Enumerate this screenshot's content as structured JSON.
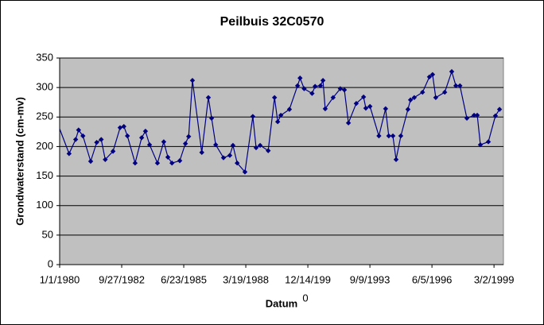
{
  "chart_data": {
    "type": "line",
    "title": "Peilbuis 32C0570",
    "x_label": "Datum",
    "x_label_note": "0",
    "y_label": "Grondwaterstand (cm-mv)",
    "color": "#000080",
    "plot_background": "#c0c0c0",
    "grid": true,
    "markers": true,
    "x": [
      "1980-01-01",
      "1980-06-01",
      "1980-09-15",
      "1980-11-01",
      "1981-01-10",
      "1981-05-15",
      "1981-08-20",
      "1981-11-01",
      "1982-01-05",
      "1982-05-10",
      "1982-09-01",
      "1982-11-01",
      "1982-12-28",
      "1983-05-01",
      "1983-08-15",
      "1983-10-15",
      "1983-12-20",
      "1984-04-25",
      "1984-08-05",
      "1984-10-10",
      "1984-12-15",
      "1985-04-20",
      "1985-07-20",
      "1985-09-10",
      "1985-11-10",
      "1986-04-10",
      "1986-07-25",
      "1986-09-15",
      "1986-11-20",
      "1987-03-25",
      "1987-07-05",
      "1987-08-25",
      "1987-11-01",
      "1988-03-05",
      "1988-07-10",
      "1988-09-01",
      "1988-11-05",
      "1989-03-15",
      "1989-06-25",
      "1989-08-15",
      "1989-10-05",
      "1990-02-20",
      "1990-07-01",
      "1990-08-10",
      "1990-10-15",
      "1991-02-20",
      "1991-04-10",
      "1991-07-05",
      "1991-08-15",
      "1991-09-20",
      "1992-01-25",
      "1992-05-20",
      "1992-07-25",
      "1992-09-28",
      "1993-02-01",
      "1993-05-30",
      "1993-07-05",
      "1993-09-10",
      "1994-02-01",
      "1994-05-20",
      "1994-07-10",
      "1994-09-15",
      "1994-11-05",
      "1995-01-20",
      "1995-05-15",
      "1995-06-25",
      "1995-08-25",
      "1996-01-05",
      "1996-04-25",
      "1996-06-15",
      "1996-08-05",
      "1996-12-28",
      "1997-04-20",
      "1997-06-25",
      "1997-08-30",
      "1997-12-20",
      "1998-04-15",
      "1998-06-05",
      "1998-07-25",
      "1998-12-01",
      "1999-03-25",
      "1999-05-30"
    ],
    "values": [
      230,
      188,
      212,
      228,
      218,
      175,
      207,
      212,
      178,
      192,
      232,
      234,
      218,
      172,
      215,
      226,
      203,
      172,
      208,
      182,
      172,
      176,
      205,
      217,
      312,
      190,
      283,
      248,
      203,
      181,
      185,
      202,
      172,
      157,
      251,
      198,
      202,
      193,
      283,
      242,
      253,
      263,
      303,
      316,
      298,
      290,
      302,
      303,
      312,
      264,
      283,
      298,
      296,
      240,
      273,
      284,
      265,
      268,
      218,
      264,
      218,
      218,
      178,
      218,
      263,
      279,
      283,
      292,
      318,
      322,
      283,
      292,
      327,
      303,
      303,
      248,
      253,
      253,
      203,
      208,
      252,
      263
    ],
    "xlim": [
      "1980-01-01",
      "1999-08-01"
    ],
    "xticks": [
      {
        "value": "1980-01-01",
        "label": "1/1/1980"
      },
      {
        "value": "1982-09-27",
        "label": "9/27/1982"
      },
      {
        "value": "1985-06-23",
        "label": "6/23/1985"
      },
      {
        "value": "1988-03-19",
        "label": "3/19/1988"
      },
      {
        "value": "1990-12-14",
        "label": "12/14/199"
      },
      {
        "value": "1993-09-09",
        "label": "9/9/1993"
      },
      {
        "value": "1996-06-05",
        "label": "6/5/1996"
      },
      {
        "value": "1999-03-02",
        "label": "3/2/1999"
      }
    ],
    "ylim": [
      0,
      350
    ],
    "yticks": [
      0,
      50,
      100,
      150,
      200,
      250,
      300,
      350
    ]
  }
}
